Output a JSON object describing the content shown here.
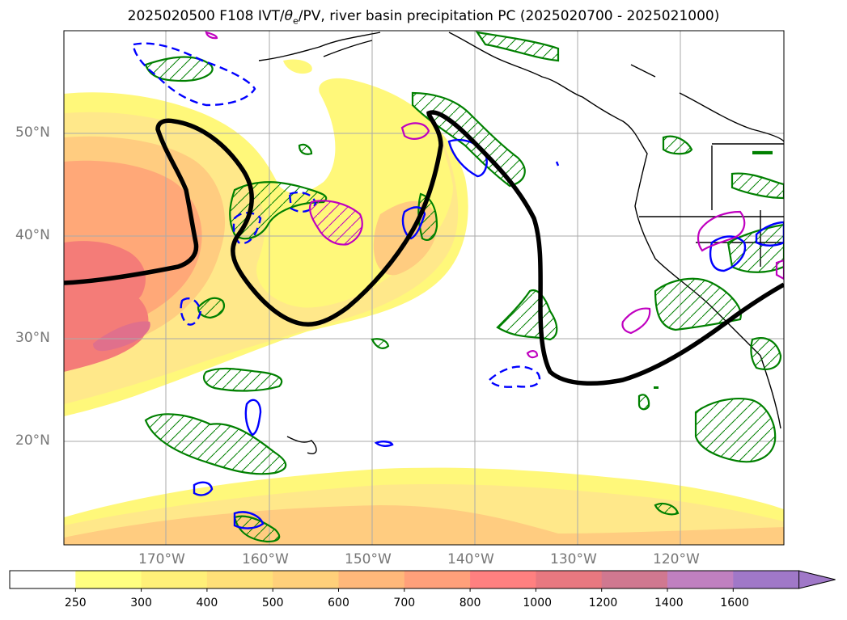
{
  "title": {
    "prefix": "2025020500 F108 IVT/",
    "theta": "θ",
    "theta_sub": "e",
    "suffix": "/PV, river basin precipitation PC (2025020700 - 2025021000)"
  },
  "lat_labels": [
    "50°N",
    "40°N",
    "30°N",
    "20°N"
  ],
  "lon_labels": [
    "170°W",
    "160°W",
    "150°W",
    "140°W",
    "130°W",
    "120°W"
  ],
  "colorbar": {
    "ticks": [
      "250",
      "300",
      "400",
      "500",
      "600",
      "700",
      "800",
      "1000",
      "1200",
      "1400",
      "1600"
    ],
    "colors": [
      "#ffffff",
      "#ffff80",
      "#fff078",
      "#ffe078",
      "#ffd07a",
      "#ffb87a",
      "#ffa07a",
      "#ff8080",
      "#e87880",
      "#d07890",
      "#c080c0",
      "#a078c8"
    ],
    "extend": "max"
  },
  "map": {
    "ivt_fill_colors": [
      "#fff87a",
      "#ffe88a",
      "#ffcc80",
      "#ffa878",
      "#f47c78",
      "#e0708c"
    ],
    "contour_colors": {
      "theta_e_line": "#000000",
      "precip_pc_green": "#008000",
      "precip_pc_blue": "#0000ff",
      "precip_pc_magenta": "#c000c0",
      "coastline": "#000000"
    }
  }
}
